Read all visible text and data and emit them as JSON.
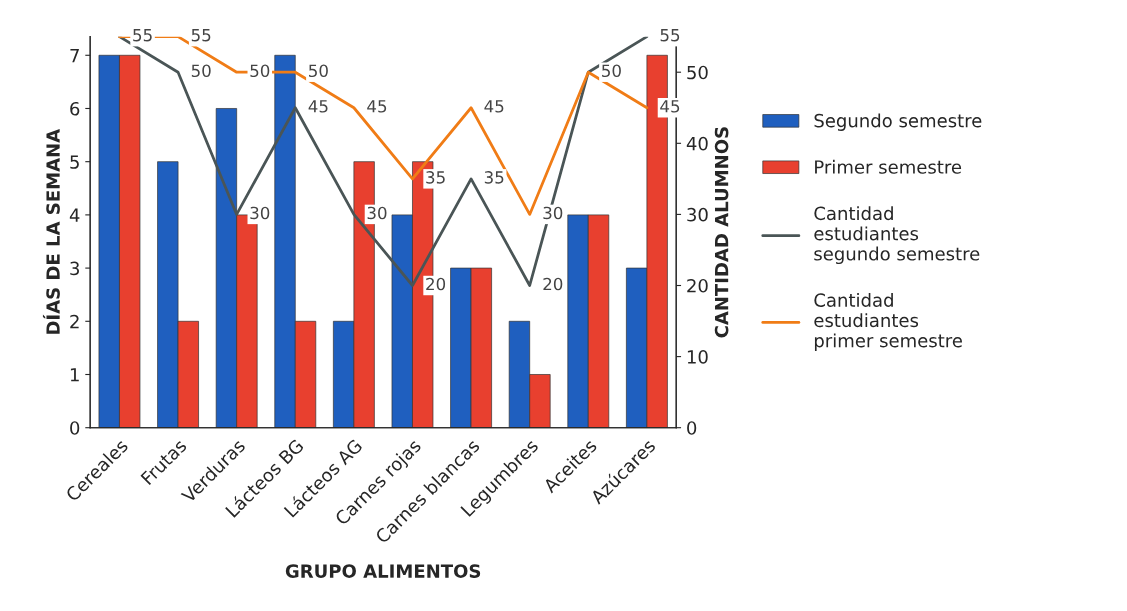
{
  "chart_data": {
    "type": "bar",
    "xlabel": "GRUPO ALIMENTOS",
    "ylabel": "DÍAS DE LA SEMANA",
    "y2label": "CANTIDAD ALUMNOS",
    "categories": [
      "Cereales",
      "Frutas",
      "Verduras",
      "Lácteos BG",
      "Lácteos AG",
      "Carnes rojas",
      "Carnes blancas",
      "Legumbres",
      "Aceites",
      "Azúcares"
    ],
    "series": [
      {
        "name": "Segundo semestre",
        "color": "#1f5fbf",
        "values": [
          7,
          5,
          6,
          7,
          2,
          4,
          3,
          2,
          4,
          3
        ]
      },
      {
        "name": "Primer semestre",
        "color": "#e8402f",
        "values": [
          7,
          2,
          4,
          2,
          5,
          5,
          3,
          1,
          4,
          7
        ]
      },
      {
        "name": "Cantidad estudiantes segundo semestre",
        "type": "line",
        "axis": "y2",
        "color": "#4a5556",
        "values": [
          55,
          50,
          30,
          45,
          30,
          20,
          35,
          20,
          50,
          55
        ],
        "value_labels": [
          null,
          "50",
          "30",
          "45",
          "30",
          "20",
          "35",
          "20",
          null,
          "55"
        ]
      },
      {
        "name": "Cantidad estudiantes primer semestre",
        "type": "line",
        "axis": "y2",
        "color": "#f07c16",
        "values": [
          55,
          55,
          50,
          50,
          45,
          35,
          45,
          30,
          50,
          45
        ],
        "value_labels": [
          "55",
          "55",
          "50",
          "50",
          "45",
          "35",
          "45",
          "30",
          "50",
          "45"
        ]
      }
    ],
    "ylim": [
      0,
      7.35
    ],
    "yticks": [
      0,
      1,
      2,
      3,
      4,
      5,
      6,
      7
    ],
    "y2lim": [
      0,
      55
    ],
    "y2ticks": [
      0,
      10,
      20,
      30,
      40,
      50
    ],
    "legend": "right",
    "grid": false
  }
}
